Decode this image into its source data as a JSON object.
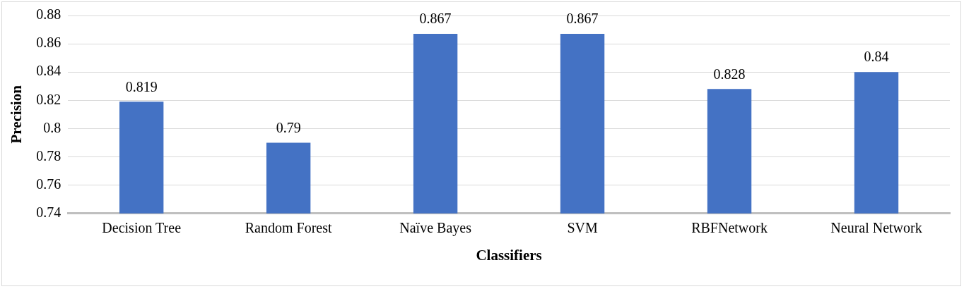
{
  "chart_data": {
    "type": "bar",
    "xlabel": "Classifiers",
    "ylabel": "Precision",
    "categories": [
      "Decision Tree",
      "Random Forest",
      "Naïve Bayes",
      "SVM",
      "RBFNetwork",
      "Neural Network"
    ],
    "values": [
      0.819,
      0.79,
      0.867,
      0.867,
      0.828,
      0.84
    ],
    "color": "#4472c4",
    "ylim": [
      0.74,
      0.88
    ],
    "yticks": [
      0.74,
      0.76,
      0.78,
      0.8,
      0.82,
      0.84,
      0.86,
      0.88
    ],
    "grid": "y",
    "data_labels": true
  }
}
